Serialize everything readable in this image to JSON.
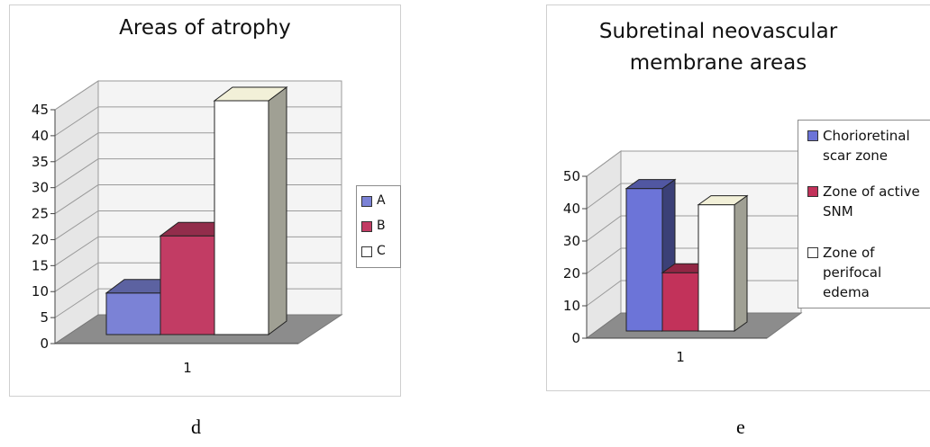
{
  "captions": {
    "left": "d",
    "right": "e"
  },
  "chart_data": [
    {
      "type": "bar",
      "title": "Areas of atrophy",
      "categories": [
        "1"
      ],
      "series": [
        {
          "name": "A",
          "values": [
            8
          ],
          "color": "#7b82d6"
        },
        {
          "name": "B",
          "values": [
            19
          ],
          "color": "#c23c64"
        },
        {
          "name": "C",
          "values": [
            45
          ],
          "color": "#ffffff"
        }
      ],
      "ylim": [
        0,
        45
      ],
      "yticks": [
        "0",
        "5",
        "10",
        "15",
        "20",
        "25",
        "30",
        "35",
        "40",
        "45"
      ],
      "grid": true,
      "legend": "right",
      "style": "3d-clustered-column"
    },
    {
      "type": "bar",
      "title": "Subretinal neovascular membrane areas",
      "categories": [
        "1"
      ],
      "series": [
        {
          "name": "Chorioretinal scar zone",
          "values": [
            44
          ],
          "color": "#6c74d8"
        },
        {
          "name": "Zone of active SNM",
          "values": [
            18
          ],
          "color": "#c2325a"
        },
        {
          "name": "Zone of perifocal edema",
          "values": [
            39
          ],
          "color": "#ffffff"
        }
      ],
      "ylim": [
        0,
        50
      ],
      "yticks": [
        "0",
        "10",
        "20",
        "30",
        "40",
        "50"
      ],
      "grid": true,
      "legend": "right",
      "style": "3d-clustered-column"
    }
  ]
}
